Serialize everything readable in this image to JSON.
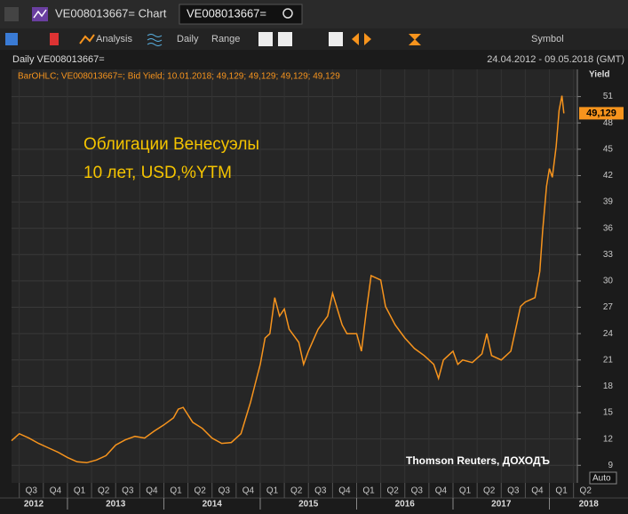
{
  "toolbar": {
    "title": "VE008013667= Chart",
    "search": "VE008013667=",
    "analysis": "Analysis",
    "interval": "Daily",
    "range": "Range",
    "symbol": "Symbol",
    "auto": "Auto"
  },
  "chart_data": {
    "type": "line",
    "header": "Daily VE008013667=",
    "date_range": "24.04.2012 - 09.05.2018 (GMT)",
    "legend_text": "BarOHLC; VE008013667=; Bid Yield; 10.01.2018; 49,129; 49,129; 49,129; 49,129",
    "ylabel": "Yield",
    "annotation": [
      "Облигации Венесуэлы",
      "10 лет, USD,%YTM"
    ],
    "source": "Thomson Reuters, ДОХОДЪ",
    "last_value_label": "49,129",
    "color": "#f7941d",
    "grid": true,
    "x": [
      2012.42,
      2012.5,
      2012.6,
      2012.7,
      2012.8,
      2012.9,
      2013.0,
      2013.1,
      2013.2,
      2013.3,
      2013.4,
      2013.5,
      2013.6,
      2013.7,
      2013.8,
      2013.9,
      2014.0,
      2014.1,
      2014.15,
      2014.2,
      2014.3,
      2014.4,
      2014.5,
      2014.6,
      2014.7,
      2014.8,
      2014.85,
      2014.9,
      2014.95,
      2015.0,
      2015.05,
      2015.1,
      2015.15,
      2015.2,
      2015.25,
      2015.3,
      2015.4,
      2015.45,
      2015.5,
      2015.6,
      2015.7,
      2015.75,
      2015.85,
      2015.9,
      2016.0,
      2016.05,
      2016.1,
      2016.15,
      2016.25,
      2016.3,
      2016.4,
      2016.5,
      2016.6,
      2016.7,
      2016.8,
      2016.85,
      2016.9,
      2017.0,
      2017.05,
      2017.1,
      2017.2,
      2017.3,
      2017.35,
      2017.4,
      2017.5,
      2017.6,
      2017.65,
      2017.7,
      2017.75,
      2017.85,
      2017.9,
      2017.93,
      2017.97,
      2018.0,
      2018.03,
      2018.07,
      2018.1,
      2018.13,
      2018.15
    ],
    "values": [
      11.8,
      12.6,
      12.1,
      11.5,
      11.0,
      10.5,
      9.9,
      9.4,
      9.3,
      9.6,
      10.1,
      11.3,
      11.9,
      12.3,
      12.1,
      12.9,
      13.6,
      14.4,
      15.4,
      15.6,
      13.9,
      13.2,
      12.1,
      11.5,
      11.6,
      12.6,
      14.4,
      16.2,
      18.4,
      20.5,
      23.5,
      24.0,
      28.1,
      26.0,
      26.8,
      24.5,
      23.0,
      20.5,
      22.0,
      24.5,
      26.0,
      28.6,
      25.0,
      24.0,
      24.0,
      22.0,
      26.5,
      30.6,
      30.1,
      27.1,
      25.0,
      23.5,
      22.3,
      21.5,
      20.5,
      18.9,
      21.0,
      22.0,
      20.5,
      21.0,
      20.7,
      21.7,
      24.0,
      21.5,
      21.0,
      22.0,
      24.5,
      27.1,
      27.6,
      28.1,
      31.1,
      35.7,
      40.8,
      42.8,
      41.8,
      45.3,
      49.4,
      51.1,
      49.1
    ],
    "xlim": [
      2012.42,
      2018.29
    ],
    "ylim": [
      7,
      54.1
    ],
    "yticks": [
      9,
      12,
      15,
      18,
      21,
      24,
      27,
      30,
      33,
      36,
      39,
      42,
      45,
      48,
      51
    ],
    "xticks": [
      {
        "value": 2012.5,
        "label": "Q3"
      },
      {
        "value": 2012.75,
        "label": "Q4"
      },
      {
        "value": 2013.0,
        "label": "Q1"
      },
      {
        "value": 2013.25,
        "label": "Q2"
      },
      {
        "value": 2013.5,
        "label": "Q3"
      },
      {
        "value": 2013.75,
        "label": "Q4"
      },
      {
        "value": 2014.0,
        "label": "Q1"
      },
      {
        "value": 2014.25,
        "label": "Q2"
      },
      {
        "value": 2014.5,
        "label": "Q3"
      },
      {
        "value": 2014.75,
        "label": "Q4"
      },
      {
        "value": 2015.0,
        "label": "Q1"
      },
      {
        "value": 2015.25,
        "label": "Q2"
      },
      {
        "value": 2015.5,
        "label": "Q3"
      },
      {
        "value": 2015.75,
        "label": "Q4"
      },
      {
        "value": 2016.0,
        "label": "Q1"
      },
      {
        "value": 2016.25,
        "label": "Q2"
      },
      {
        "value": 2016.5,
        "label": "Q3"
      },
      {
        "value": 2016.75,
        "label": "Q4"
      },
      {
        "value": 2017.0,
        "label": "Q1"
      },
      {
        "value": 2017.25,
        "label": "Q2"
      },
      {
        "value": 2017.5,
        "label": "Q3"
      },
      {
        "value": 2017.75,
        "label": "Q4"
      },
      {
        "value": 2018.0,
        "label": "Q1"
      },
      {
        "value": 2018.25,
        "label": "Q2"
      }
    ],
    "year_ticks": [
      2012,
      2013,
      2014,
      2015,
      2016,
      2017,
      2018
    ]
  }
}
